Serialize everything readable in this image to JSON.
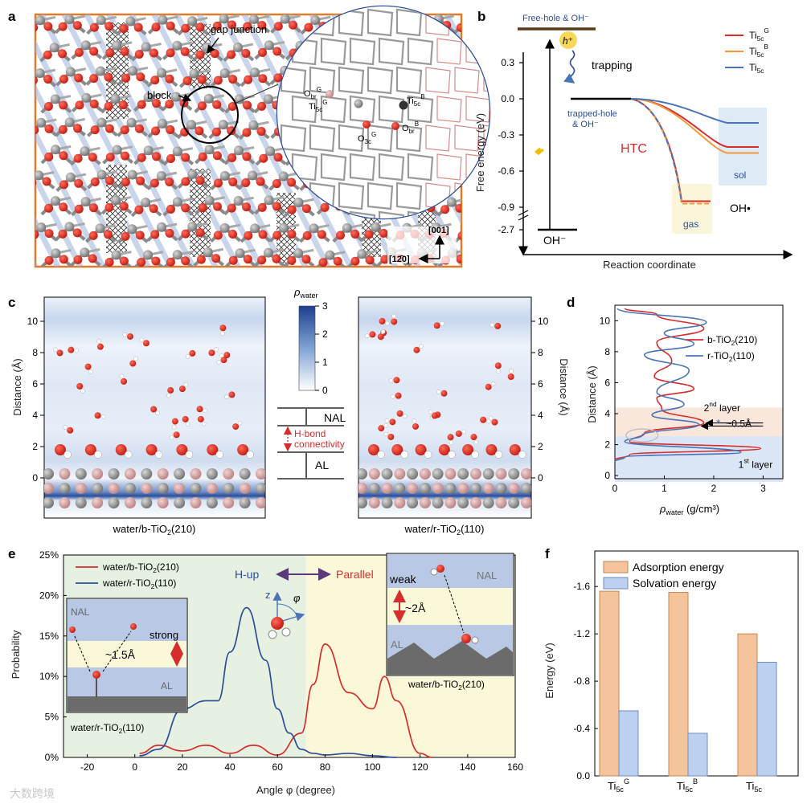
{
  "panels": {
    "a": {
      "letter": "a",
      "gap_label": "gap junction",
      "block_label": "block",
      "atoms": {
        "obr_g": "O",
        "obr_g_sub": "br",
        "obr_g_sup": "G",
        "ti5c_g": "Ti",
        "ti5c_g_sub": "5c",
        "ti5c_g_sup": "G",
        "o3c_g": "O",
        "o3c_g_sub": "3c",
        "o3c_g_sup": "G",
        "ti5c_b": "Ti",
        "ti5c_b_sub": "5c",
        "ti5c_b_sup": "B",
        "obr_b": "O",
        "obr_b_sub": "br",
        "obr_b_sup": "B"
      },
      "axis_001": "[001]",
      "axis_120": "[12̄0]"
    },
    "b": {
      "letter": "b",
      "free_hole": "Free-hole & OH⁻",
      "h_plus": "h⁺",
      "trapping": "trapping",
      "trapped_hole_1": "trapped-hole",
      "trapped_hole_2": "& OH⁻",
      "htc": "HTC",
      "sol": "sol",
      "gas": "gas",
      "oh_radical": "OH•",
      "oh_minus": "OH⁻",
      "ylabel": "Free energy (eV)",
      "xlabel": "Reaction coordinate",
      "yticks": [
        "0.3",
        "0.0",
        "-0.3",
        "-0.6",
        "-0.9",
        "-2.7"
      ],
      "legend": [
        {
          "name": "Ti",
          "sub": "5c",
          "sup": "G",
          "color": "#d62d2d"
        },
        {
          "name": "Ti",
          "sub": "5c",
          "sup": "B",
          "color": "#f0993a"
        },
        {
          "name": "Ti",
          "sub": "5c",
          "sup": "",
          "color": "#4a74b8"
        }
      ]
    },
    "c": {
      "letter": "c",
      "left_caption": "water/b-TiO",
      "left_caption_sub": "2",
      "left_caption_end": "(210)",
      "right_caption": "water/r-TiO",
      "right_caption_sub": "2",
      "right_caption_end": "(110)",
      "ylabel": "Distance (Å)",
      "yticks": [
        "0",
        "2",
        "4",
        "6",
        "8",
        "10"
      ],
      "rho_label": "ρ",
      "rho_sub": "water",
      "cbar_ticks": [
        "0",
        "1",
        "2",
        "3"
      ],
      "nal": "NAL",
      "al": "AL",
      "hbond_1": "H-bond",
      "hbond_2": "connectivity"
    },
    "d": {
      "letter": "d",
      "xlabel": "ρ",
      "xlabel_sub": "water",
      "xlabel_unit": " (g/cm³)",
      "ylabel": "Distance (Å)",
      "xticks": [
        "0",
        "1",
        "2",
        "3"
      ],
      "yticks": [
        "0",
        "2",
        "4",
        "6",
        "8",
        "10"
      ],
      "legend": [
        {
          "label": "b-TiO",
          "sub": "2",
          "end": "(210)",
          "color": "#d62d2d"
        },
        {
          "label": "r-TiO",
          "sub": "2",
          "end": "(110)",
          "color": "#4a74b8"
        }
      ],
      "second_layer": "2",
      "second_layer_sup": "nd",
      "second_layer_end": " layer",
      "first_layer": "1",
      "first_layer_sup": "st",
      "first_layer_end": " layer",
      "shift": "~0.5Å"
    },
    "e": {
      "letter": "e",
      "ylabel": "Probability",
      "xlabel": "Angle φ (degree)",
      "xticks": [
        "-20",
        "0",
        "20",
        "40",
        "60",
        "80",
        "100",
        "120",
        "140",
        "160"
      ],
      "yticks": [
        "0%",
        "5%",
        "10%",
        "15%",
        "20%",
        "25%"
      ],
      "legend": [
        {
          "label": "water/b-TiO",
          "sub": "2",
          "end": "(210)",
          "color": "#d62d2d"
        },
        {
          "label": "water/r-TiO",
          "sub": "2",
          "end": "(110)",
          "color": "#2b4d9a"
        }
      ],
      "hup": "H-up",
      "parallel": "Parallel",
      "z": "z",
      "phi": "φ",
      "inset_left": {
        "nal": "NAL",
        "al": "AL",
        "strong": "strong",
        "dist": "~1.5Å",
        "caption": "water/r-TiO",
        "caption_sub": "2",
        "caption_end": "(110)"
      },
      "inset_right": {
        "nal": "NAL",
        "al": "AL",
        "weak": "weak",
        "dist": "~2Å",
        "caption": "water/b-TiO",
        "caption_sub": "2",
        "caption_end": "(210)"
      }
    },
    "f": {
      "letter": "f",
      "ylabel": "Energy (eV)",
      "yticks": [
        "0.0",
        "-0.4",
        "-0.8",
        "-1.2",
        "-1.6"
      ],
      "legend": [
        {
          "label": "Adsorption energy"
        },
        {
          "label": "Solvation energy"
        }
      ],
      "categories": [
        {
          "name": "Ti",
          "sub": "5c",
          "sup": "G"
        },
        {
          "name": "Ti",
          "sub": "5c",
          "sup": "B"
        },
        {
          "name": "Ti",
          "sub": "5c",
          "sup": ""
        }
      ]
    }
  },
  "watermark": "大数跨境",
  "chart_data": [
    {
      "type": "line",
      "panel": "b",
      "xlabel": "Reaction coordinate",
      "ylabel": "Free energy (eV)",
      "series": [
        {
          "name": "Ti5c^G",
          "sol": -0.4,
          "gas": -0.85
        },
        {
          "name": "Ti5c^B",
          "sol": -0.45,
          "gas": -0.87
        },
        {
          "name": "Ti5c",
          "sol": -0.2
        }
      ],
      "levels": {
        "free_hole": 0.43,
        "trapped_hole": 0.0,
        "oh_minus": -2.7
      }
    },
    {
      "type": "line",
      "panel": "d",
      "xlabel": "ρwater (g/cm³)",
      "ylabel": "Distance (Å)",
      "xlim": [
        0,
        3.4
      ],
      "ylim": [
        -0.2,
        11
      ],
      "series": [
        {
          "name": "b-TiO2(210)",
          "points": [
            [
              0,
              1.0
            ],
            [
              0.3,
              1.35
            ],
            [
              2.95,
              1.75
            ],
            [
              0.3,
              2.2
            ],
            [
              0.6,
              2.75
            ],
            [
              1.8,
              3.4
            ],
            [
              0.95,
              4.3
            ],
            [
              0.85,
              5.0
            ],
            [
              1.6,
              5.6
            ],
            [
              0.8,
              6.4
            ],
            [
              1.15,
              7.4
            ],
            [
              0.85,
              8.6
            ],
            [
              1.8,
              9.5
            ],
            [
              0.85,
              10.4
            ],
            [
              0.2,
              10.8
            ]
          ]
        },
        {
          "name": "r-TiO2(110)",
          "points": [
            [
              0,
              0.9
            ],
            [
              0.2,
              1.2
            ],
            [
              2.55,
              1.5
            ],
            [
              0.2,
              2.2
            ],
            [
              0.55,
              2.6
            ],
            [
              1.7,
              3.3
            ],
            [
              0.75,
              3.9
            ],
            [
              1.4,
              4.6
            ],
            [
              0.85,
              5.4
            ],
            [
              1.5,
              6.8
            ],
            [
              0.6,
              7.8
            ],
            [
              1.6,
              8.5
            ],
            [
              1.0,
              9.2
            ],
            [
              1.85,
              9.9
            ],
            [
              0.05,
              10.8
            ]
          ]
        }
      ]
    },
    {
      "type": "line",
      "panel": "e",
      "xlabel": "Angle φ (degree)",
      "ylabel": "Probability",
      "xlim": [
        -30,
        160
      ],
      "ylim": [
        0,
        25
      ],
      "series": [
        {
          "name": "water/b-TiO2(210)",
          "x": [
            2,
            10,
            20,
            30,
            40,
            50,
            60,
            70,
            75,
            80,
            90,
            100,
            105,
            110,
            120,
            125
          ],
          "y": [
            0.5,
            1.5,
            0.8,
            1.5,
            0.5,
            1.5,
            0.3,
            3,
            9,
            14,
            8,
            6,
            10,
            7,
            0.5,
            0
          ]
        },
        {
          "name": "water/r-TiO2(110)",
          "x": [
            2,
            10,
            20,
            30,
            35,
            40,
            47,
            55,
            60,
            65,
            70,
            75,
            80,
            90,
            100,
            110
          ],
          "y": [
            0.2,
            1,
            6,
            7,
            7,
            13,
            18.5,
            12,
            6,
            3,
            1,
            0.5,
            0.3,
            0.5,
            0.2,
            0
          ]
        }
      ]
    },
    {
      "type": "bar",
      "panel": "f",
      "categories": [
        "Ti5c^G",
        "Ti5c^B",
        "Ti5c"
      ],
      "ylim": [
        0,
        -1.9
      ],
      "series": [
        {
          "name": "Adsorption energy",
          "values": [
            -1.56,
            -1.55,
            -1.2
          ]
        },
        {
          "name": "Solvation energy",
          "values": [
            -0.55,
            -0.36,
            -0.96
          ]
        }
      ]
    }
  ]
}
